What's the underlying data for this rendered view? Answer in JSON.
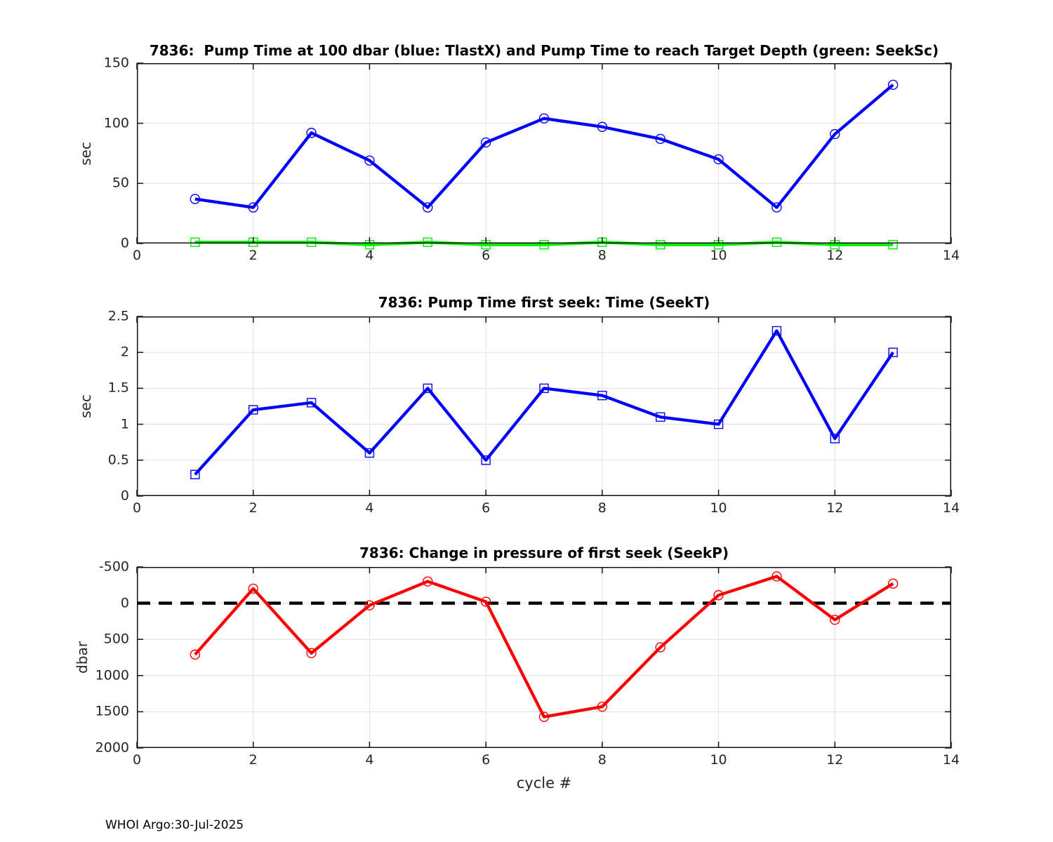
{
  "figure": {
    "footer": "WHOI Argo:30-Jul-2025",
    "xlabel": "cycle #",
    "background_color": "#ffffff",
    "axis_color": "#111111",
    "grid_color": "#e0e0e0",
    "tick_label_color": "#262626"
  },
  "chart_data": [
    {
      "type": "line",
      "title": "7836:  Pump Time at 100 dbar (blue: TlastX) and Pump Time to reach Target Depth (green: SeekSc)",
      "ylabel": "sec",
      "xlim": [
        0,
        14
      ],
      "ylim": [
        0,
        150
      ],
      "xticks": [
        0,
        2,
        4,
        6,
        8,
        10,
        12,
        14
      ],
      "yticks": [
        0,
        50,
        100,
        150
      ],
      "grid": true,
      "legend_position": "none",
      "x": [
        1,
        2,
        3,
        4,
        5,
        6,
        7,
        8,
        9,
        10,
        11,
        12,
        13
      ],
      "series": [
        {
          "name": "TlastX",
          "color": "#0000ff",
          "marker": "circle",
          "values": [
            37,
            30,
            92,
            69,
            30,
            84,
            104,
            97,
            87,
            70,
            30,
            91,
            132
          ]
        },
        {
          "name": "SeekSc",
          "color": "#00ee00",
          "marker": "square",
          "values": [
            1,
            1,
            1,
            -1,
            1,
            -1,
            -1,
            1,
            -1,
            -1,
            1,
            -1,
            -1
          ]
        }
      ]
    },
    {
      "type": "line",
      "title": "7836: Pump Time first seek: Time (SeekT)",
      "ylabel": "sec",
      "xlim": [
        0,
        14
      ],
      "ylim": [
        0,
        2.5
      ],
      "xticks": [
        0,
        2,
        4,
        6,
        8,
        10,
        12,
        14
      ],
      "yticks": [
        0,
        0.5,
        1,
        1.5,
        2,
        2.5
      ],
      "grid": true,
      "legend_position": "none",
      "x": [
        1,
        2,
        3,
        4,
        5,
        6,
        7,
        8,
        9,
        10,
        11,
        12,
        13
      ],
      "series": [
        {
          "name": "SeekT",
          "color": "#0000ff",
          "marker": "square",
          "values": [
            0.3,
            1.2,
            1.3,
            0.6,
            1.5,
            0.5,
            1.5,
            1.4,
            1.1,
            1.0,
            2.3,
            0.8,
            2.0
          ]
        }
      ]
    },
    {
      "type": "line",
      "title": "7836: Change in pressure of first seek (SeekP)",
      "ylabel": "dbar",
      "xlim": [
        0,
        14
      ],
      "ylim": [
        -500,
        2000
      ],
      "y_reversed": true,
      "xticks": [
        0,
        2,
        4,
        6,
        8,
        10,
        12,
        14
      ],
      "yticks": [
        -500,
        0,
        500,
        1000,
        1500,
        2000
      ],
      "grid": true,
      "legend_position": "none",
      "refline": {
        "value": 0,
        "color": "#000000",
        "style": "dashed"
      },
      "x": [
        1,
        2,
        3,
        4,
        5,
        6,
        7,
        8,
        9,
        10,
        11,
        12,
        13
      ],
      "series": [
        {
          "name": "SeekP",
          "color": "#ff0000",
          "marker": "circle",
          "values": [
            710,
            -200,
            690,
            30,
            -300,
            -20,
            1570,
            1430,
            610,
            -110,
            -370,
            230,
            -270
          ]
        }
      ]
    }
  ]
}
